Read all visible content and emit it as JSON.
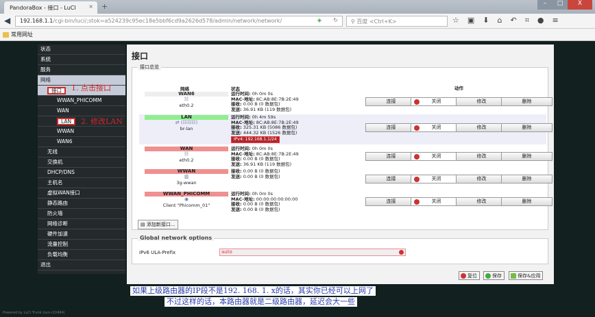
{
  "browser": {
    "tab_title": "PandoraBox - 接口 - LuCI",
    "url_host": "192.168.1.1",
    "url_path": "/cgi-bin/luci/;stok=a524239c95ec18e5bbf6cd9a2626d578/admin/network/network/",
    "search_placeholder": "百度 <Ctrl+K>",
    "bookmark": "常用网址"
  },
  "sidebar": {
    "items": [
      {
        "label": "状态",
        "level": 0
      },
      {
        "label": "系统",
        "level": 0
      },
      {
        "label": "服务",
        "level": 0
      },
      {
        "label": "网络",
        "level": 0
      },
      {
        "label": "接口",
        "level": 1
      },
      {
        "label": "WWAN_PHICOMM",
        "level": 2
      },
      {
        "label": "WAN",
        "level": 2
      },
      {
        "label": "LAN",
        "level": 2
      },
      {
        "label": "WWAN",
        "level": 2
      },
      {
        "label": "WAN6",
        "level": 2
      },
      {
        "label": "无线",
        "level": 1
      },
      {
        "label": "交换机",
        "level": 1
      },
      {
        "label": "DHCP/DNS",
        "level": 1
      },
      {
        "label": "主机名",
        "level": 1
      },
      {
        "label": "虚拟WAN接口",
        "level": 1
      },
      {
        "label": "静态路由",
        "level": 1
      },
      {
        "label": "防火墙",
        "level": 1
      },
      {
        "label": "网络诊断",
        "level": 1
      },
      {
        "label": "硬件加速",
        "level": 1
      },
      {
        "label": "流量控制",
        "level": 1
      },
      {
        "label": "负载均衡",
        "level": 1
      },
      {
        "label": "退出",
        "level": 0
      }
    ]
  },
  "annotations": {
    "step1": "1. 点击接口",
    "step2": "2. 修改LAN",
    "note1": "如果上级路由器的IP段不是192. 168. 1. x的话，其实你已经可以上网了",
    "note2": "不过这样的话，本路由器就是二级路由器，延迟会大一些"
  },
  "main": {
    "title": "接口",
    "section": "接口总览",
    "col_network": "网络",
    "col_status": "状态",
    "col_actions": "动作",
    "buttons": {
      "connect": "连接",
      "stop": "关闭",
      "edit": "修改",
      "delete": "删除"
    },
    "interfaces": [
      {
        "name": "WAN6",
        "color": "#eeeeee",
        "icon": "ethernet-icon",
        "device": "eth0.2",
        "status": [
          [
            "运行时间:",
            "0h 0m 0s"
          ],
          [
            "MAC-地址:",
            "8C:AB:8E:7B:2E:49"
          ],
          [
            "接收:",
            "0.00 B (0 数据包)"
          ],
          [
            "发送:",
            "36.91 KB (119 数据包)"
          ]
        ]
      },
      {
        "name": "LAN",
        "color": "#90ee90",
        "icon": "bridge-icon",
        "device": "br-lan",
        "status": [
          [
            "运行时间:",
            "0h 4m 59s"
          ],
          [
            "MAC-地址:",
            "8C:AB:8E:7B:2E:49"
          ],
          [
            "接收:",
            "325.31 KB (5086 数据包)"
          ],
          [
            "发送:",
            "444.32 KB (1526 数据包)"
          ]
        ],
        "ipv4": "IPv4: 192.168.1.1/24"
      },
      {
        "name": "WAN",
        "color": "#f09090",
        "icon": "ethernet-icon",
        "device": "eth0.2",
        "status": [
          [
            "运行时间:",
            "0h 0m 0s"
          ],
          [
            "MAC-地址:",
            "8C:AB:8E:7B:2E:49"
          ],
          [
            "接收:",
            "0.00 B (0 数据包)"
          ],
          [
            "发送:",
            "36.91 KB (119 数据包)"
          ]
        ]
      },
      {
        "name": "WWAN",
        "color": "#f09090",
        "icon": "3g-icon",
        "device": "3g-wwan",
        "status": [
          [
            "接收:",
            "0.00 B (0 数据包)"
          ],
          [
            "发送:",
            "0.00 B (0 数据包)"
          ]
        ]
      },
      {
        "name": "WWAN_PHICOMM",
        "color": "#f09090",
        "icon": "wifi-icon",
        "device": "Client \"Phicomm_01\"",
        "status": [
          [
            "运行时间:",
            "0h 0m 0s"
          ],
          [
            "MAC-地址:",
            "00:00:00:00:00:00"
          ],
          [
            "接收:",
            "0.00 B (0 数据包)"
          ],
          [
            "发送:",
            "0.00 B (0 数据包)"
          ]
        ]
      }
    ],
    "add_interface": "添加新接口...",
    "global_title": "Global network options",
    "ula_label": "IPv6 ULA-Prefix",
    "ula_value": "auto",
    "reset": "复位",
    "save": "保存",
    "save_apply": "保存&应用"
  },
  "footer": "Powered by LuCI Trunk (svn-r10464)"
}
